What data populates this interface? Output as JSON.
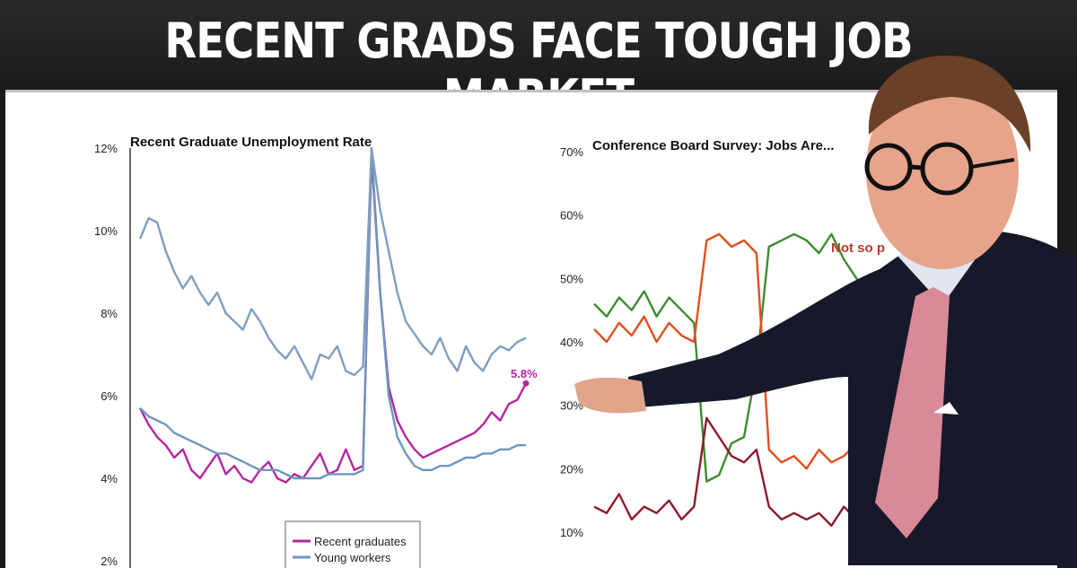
{
  "headline": "RECENT GRADS FACE TOUGH JOB MARKET",
  "chart_data": [
    {
      "type": "line",
      "title": "Recent Graduate Unemployment Rate",
      "ylim": [
        2,
        12
      ],
      "yticks": [
        "2%",
        "4%",
        "6%",
        "8%",
        "10%",
        "12%"
      ],
      "annotation": "5.8%",
      "legend": {
        "placement": "bottom-center",
        "entries": [
          "Recent graduates",
          "Young workers"
        ]
      },
      "series": [
        {
          "name": "Recent graduates",
          "color": "#b4269f",
          "values": [
            5.7,
            5.3,
            5.0,
            4.8,
            4.5,
            4.7,
            4.2,
            4.0,
            4.3,
            4.6,
            4.1,
            4.3,
            4.0,
            3.9,
            4.2,
            4.4,
            4.0,
            3.9,
            4.1,
            4.0,
            4.3,
            4.6,
            4.1,
            4.2,
            4.7,
            4.2,
            4.3,
            11.8,
            8.5,
            6.2,
            5.4,
            5.0,
            4.7,
            4.5,
            4.6,
            4.7,
            4.8,
            4.9,
            5.0,
            5.1,
            5.3,
            5.6,
            5.4,
            5.8,
            5.9,
            6.3
          ]
        },
        {
          "name": "Young workers",
          "color": "#6f96bd",
          "values": [
            5.7,
            5.5,
            5.4,
            5.3,
            5.1,
            5.0,
            4.9,
            4.8,
            4.7,
            4.6,
            4.6,
            4.5,
            4.4,
            4.3,
            4.2,
            4.2,
            4.2,
            4.1,
            4.0,
            4.0,
            4.0,
            4.0,
            4.1,
            4.1,
            4.1,
            4.1,
            4.2,
            12.0,
            8.5,
            6.0,
            5.0,
            4.6,
            4.3,
            4.2,
            4.2,
            4.3,
            4.3,
            4.4,
            4.5,
            4.5,
            4.6,
            4.6,
            4.7,
            4.7,
            4.8,
            4.8
          ]
        },
        {
          "name": "",
          "color": "#7f9ec0",
          "values": [
            9.8,
            10.3,
            10.2,
            9.5,
            9.0,
            8.6,
            8.9,
            8.5,
            8.2,
            8.5,
            8.0,
            7.8,
            7.6,
            8.1,
            7.8,
            7.4,
            7.1,
            6.9,
            7.2,
            6.8,
            6.4,
            7.0,
            6.9,
            7.2,
            6.6,
            6.5,
            6.7,
            12.0,
            10.5,
            9.5,
            8.5,
            7.8,
            7.5,
            7.2,
            7.0,
            7.4,
            6.9,
            6.6,
            7.2,
            6.8,
            6.6,
            7.0,
            7.2,
            7.1,
            7.3,
            7.4
          ]
        }
      ]
    },
    {
      "type": "line",
      "title": "Conference Board Survey: Jobs Are...",
      "ylim": [
        10,
        70
      ],
      "yticks": [
        "10%",
        "20%",
        "30%",
        "40%",
        "50%",
        "60%",
        "70%"
      ],
      "annotation": "Not so p",
      "series": [
        {
          "name": "",
          "color": "#3e8b2e",
          "values": [
            46,
            44,
            47,
            45,
            48,
            44,
            47,
            45,
            43,
            18,
            19,
            24,
            25,
            36,
            55,
            56,
            57,
            56,
            54,
            57,
            53,
            50,
            48,
            51,
            49
          ]
        },
        {
          "name": "",
          "color": "#e0501e",
          "values": [
            42,
            40,
            43,
            41,
            44,
            40,
            43,
            41,
            40,
            56,
            57,
            55,
            56,
            54,
            23,
            21,
            22,
            20,
            23,
            21,
            22,
            24,
            23,
            22,
            23
          ]
        },
        {
          "name": "",
          "color": "#8c1a2b",
          "values": [
            14,
            13,
            16,
            12,
            14,
            13,
            15,
            12,
            14,
            28,
            25,
            22,
            21,
            23,
            14,
            12,
            13,
            12,
            13,
            11,
            14,
            12,
            13,
            11,
            12
          ]
        }
      ]
    }
  ]
}
